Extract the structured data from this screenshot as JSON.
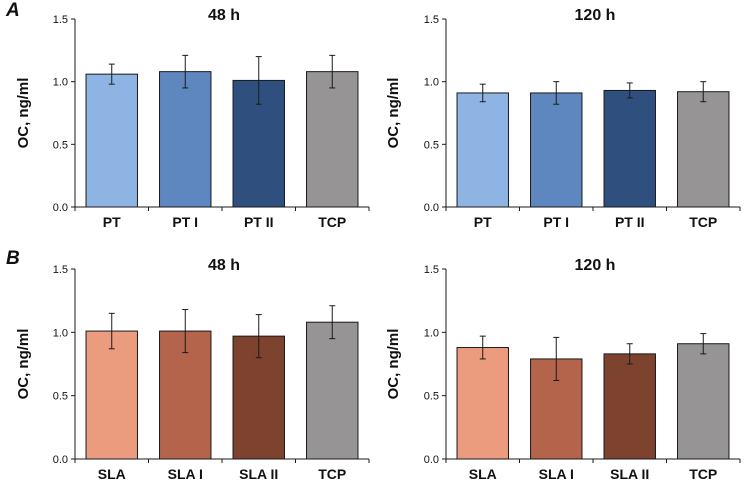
{
  "panel_labels": {
    "a": "A",
    "b": "B"
  },
  "chart_data": [
    {
      "type": "bar",
      "id": "A-48h",
      "title": "48 h",
      "xlabel": "",
      "ylabel": "OC, ng/ml",
      "ylim": [
        0,
        1.5
      ],
      "yticks": [
        "0.0",
        "0.5",
        "1.0",
        "1.5"
      ],
      "categories": [
        "PT",
        "PT I",
        "PT II",
        "TCP"
      ],
      "values": [
        1.06,
        1.08,
        1.01,
        1.08
      ],
      "errors": [
        0.08,
        0.13,
        0.19,
        0.13
      ],
      "colors": [
        "#8DB4E2",
        "#5D87BE",
        "#2F507E",
        "#969494"
      ]
    },
    {
      "type": "bar",
      "id": "A-120h",
      "title": "120 h",
      "xlabel": "",
      "ylabel": "OC, ng/ml",
      "ylim": [
        0,
        1.5
      ],
      "yticks": [
        "0.0",
        "0.5",
        "1.0",
        "1.5"
      ],
      "categories": [
        "PT",
        "PT I",
        "PT II",
        "TCP"
      ],
      "values": [
        0.91,
        0.91,
        0.93,
        0.92
      ],
      "errors": [
        0.07,
        0.09,
        0.06,
        0.08
      ],
      "colors": [
        "#8DB4E2",
        "#5D87BE",
        "#2F507E",
        "#969494"
      ]
    },
    {
      "type": "bar",
      "id": "B-48h",
      "title": "48 h",
      "xlabel": "",
      "ylabel": "OC, ng/ml",
      "ylim": [
        0,
        1.5
      ],
      "yticks": [
        "0.0",
        "0.5",
        "1.0",
        "1.5"
      ],
      "categories": [
        "SLA",
        "SLA I",
        "SLA II",
        "TCP"
      ],
      "values": [
        1.01,
        1.01,
        0.97,
        1.08
      ],
      "errors": [
        0.14,
        0.17,
        0.17,
        0.13
      ],
      "colors": [
        "#EB9C7E",
        "#B3644A",
        "#7D432F",
        "#969494"
      ]
    },
    {
      "type": "bar",
      "id": "B-120h",
      "title": "120 h",
      "xlabel": "",
      "ylabel": "OC, ng/ml",
      "ylim": [
        0,
        1.5
      ],
      "yticks": [
        "0.0",
        "0.5",
        "1.0",
        "1.5"
      ],
      "categories": [
        "SLA",
        "SLA I",
        "SLA II",
        "TCP"
      ],
      "values": [
        0.88,
        0.79,
        0.83,
        0.91
      ],
      "errors": [
        0.09,
        0.17,
        0.08,
        0.08
      ],
      "colors": [
        "#EB9C7E",
        "#B3644A",
        "#7D432F",
        "#969494"
      ]
    }
  ]
}
